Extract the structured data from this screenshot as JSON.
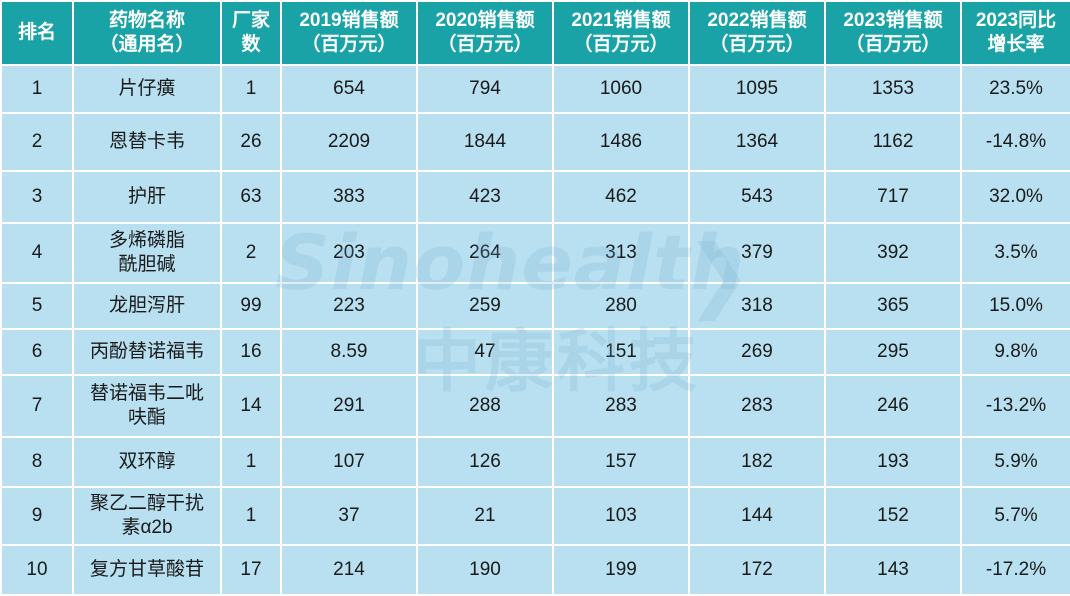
{
  "table": {
    "headers": [
      [
        "排名"
      ],
      [
        "药物名称",
        "（通用名）"
      ],
      [
        "厂家",
        "数"
      ],
      [
        "2019销售额",
        "（百万元）"
      ],
      [
        "2020销售额",
        "（百万元）"
      ],
      [
        "2021销售额",
        "（百万元）"
      ],
      [
        "2022销售额",
        "（百万元）"
      ],
      [
        "2023销售额",
        "（百万元）"
      ],
      [
        "2023同比",
        "增长率"
      ]
    ],
    "rows": [
      {
        "rank": "1",
        "name": [
          "片仔癀"
        ],
        "makers": "1",
        "s2019": "654",
        "s2020": "794",
        "s2021": "1060",
        "s2022": "1095",
        "s2023": "1353",
        "growth": "23.5%"
      },
      {
        "rank": "2",
        "name": [
          "恩替卡韦"
        ],
        "makers": "26",
        "s2019": "2209",
        "s2020": "1844",
        "s2021": "1486",
        "s2022": "1364",
        "s2023": "1162",
        "growth": "-14.8%"
      },
      {
        "rank": "3",
        "name": [
          "护肝"
        ],
        "makers": "63",
        "s2019": "383",
        "s2020": "423",
        "s2021": "462",
        "s2022": "543",
        "s2023": "717",
        "growth": "32.0%"
      },
      {
        "rank": "4",
        "name": [
          "多烯磷脂",
          "酰胆碱"
        ],
        "makers": "2",
        "s2019": "203",
        "s2020": "264",
        "s2021": "313",
        "s2022": "379",
        "s2023": "392",
        "growth": "3.5%"
      },
      {
        "rank": "5",
        "name": [
          "龙胆泻肝"
        ],
        "makers": "99",
        "s2019": "223",
        "s2020": "259",
        "s2021": "280",
        "s2022": "318",
        "s2023": "365",
        "growth": "15.0%"
      },
      {
        "rank": "6",
        "name": [
          "丙酚替诺福韦"
        ],
        "makers": "16",
        "s2019": "8.59",
        "s2020": "47",
        "s2021": "151",
        "s2022": "269",
        "s2023": "295",
        "growth": "9.8%"
      },
      {
        "rank": "7",
        "name": [
          "替诺福韦二吡",
          "呋酯"
        ],
        "makers": "14",
        "s2019": "291",
        "s2020": "288",
        "s2021": "283",
        "s2022": "283",
        "s2023": "246",
        "growth": "-13.2%"
      },
      {
        "rank": "8",
        "name": [
          "双环醇"
        ],
        "makers": "1",
        "s2019": "107",
        "s2020": "126",
        "s2021": "157",
        "s2022": "182",
        "s2023": "193",
        "growth": "5.9%"
      },
      {
        "rank": "9",
        "name": [
          "聚乙二醇干扰",
          "素α2b"
        ],
        "makers": "1",
        "s2019": "37",
        "s2020": "21",
        "s2021": "103",
        "s2022": "144",
        "s2023": "152",
        "growth": "5.7%"
      },
      {
        "rank": "10",
        "name": [
          "复方甘草酸苷"
        ],
        "makers": "17",
        "s2019": "214",
        "s2020": "190",
        "s2021": "199",
        "s2022": "172",
        "s2023": "143",
        "growth": "-17.2%"
      }
    ]
  },
  "watermark": {
    "brand_en": "Sinohealth",
    "brand_cn": "中康科技"
  },
  "colors": {
    "header_bg": "#1aa3a6",
    "cell_bg": "#b9e0f0",
    "border": "#ffffff"
  }
}
